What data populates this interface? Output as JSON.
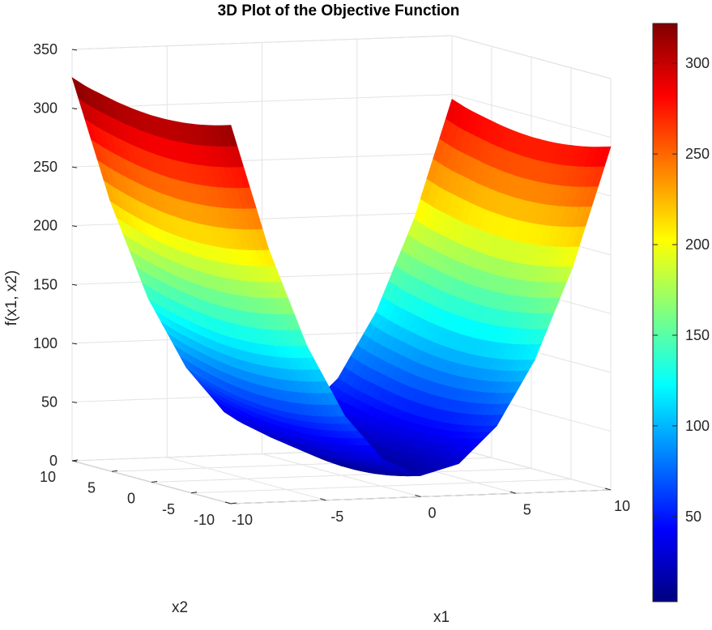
{
  "chart_data": {
    "type": "surface",
    "title": "3D Plot of the Objective Function",
    "xlabel": "x1",
    "ylabel": "x2",
    "zlabel": "f(x1, x2)",
    "x_range": [
      -10,
      10
    ],
    "y_range": [
      -10,
      10
    ],
    "zlim": [
      0,
      350
    ],
    "x_ticks": [
      -10,
      -5,
      0,
      5,
      10
    ],
    "y_ticks": [
      -10,
      -5,
      0,
      5,
      10
    ],
    "z_ticks": [
      0,
      50,
      100,
      150,
      200,
      250,
      300,
      350
    ],
    "surface_rows": [
      {
        "x1": -10,
        "f": [
          322,
          318,
          315,
          313,
          312,
          312,
          313,
          315,
          318,
          321,
          326
        ]
      },
      {
        "x1": -8,
        "f": [
          215,
          211,
          208,
          206,
          205,
          205,
          206,
          208,
          211,
          215,
          220
        ]
      },
      {
        "x1": -6,
        "f": [
          132,
          128,
          125,
          123,
          122,
          122,
          123,
          125,
          128,
          131,
          136
        ]
      },
      {
        "x1": -4,
        "f": [
          71,
          67,
          64,
          62,
          61,
          61,
          62,
          64,
          67,
          71,
          76
        ]
      },
      {
        "x1": -2,
        "f": [
          33,
          29,
          26,
          24,
          23,
          23,
          24,
          26,
          29,
          32,
          37
        ]
      },
      {
        "x1": 0,
        "f": [
          18,
          14,
          11,
          9,
          8,
          8,
          9,
          11,
          14,
          17,
          22
        ]
      },
      {
        "x1": 2,
        "f": [
          27,
          23,
          20,
          18,
          17,
          17,
          18,
          20,
          23,
          26,
          31
        ]
      },
      {
        "x1": 4,
        "f": [
          58,
          54,
          51,
          49,
          48,
          48,
          49,
          51,
          54,
          57,
          62
        ]
      },
      {
        "x1": 6,
        "f": [
          113,
          109,
          106,
          104,
          103,
          103,
          104,
          106,
          109,
          112,
          117
        ]
      },
      {
        "x1": 8,
        "f": [
          191,
          187,
          184,
          182,
          181,
          181,
          182,
          184,
          187,
          190,
          195
        ]
      },
      {
        "x1": 10,
        "f": [
          292,
          288,
          285,
          283,
          282,
          282,
          283,
          285,
          288,
          291,
          296
        ]
      }
    ],
    "surface_x2": [
      -10,
      -8,
      -6,
      -4,
      -2,
      0,
      2,
      4,
      6,
      8,
      10
    ],
    "grid": true,
    "colormap": "jet",
    "colorbar": {
      "placement": "right",
      "range": [
        3,
        322
      ],
      "ticks": [
        50,
        100,
        150,
        200,
        250,
        300
      ]
    }
  }
}
